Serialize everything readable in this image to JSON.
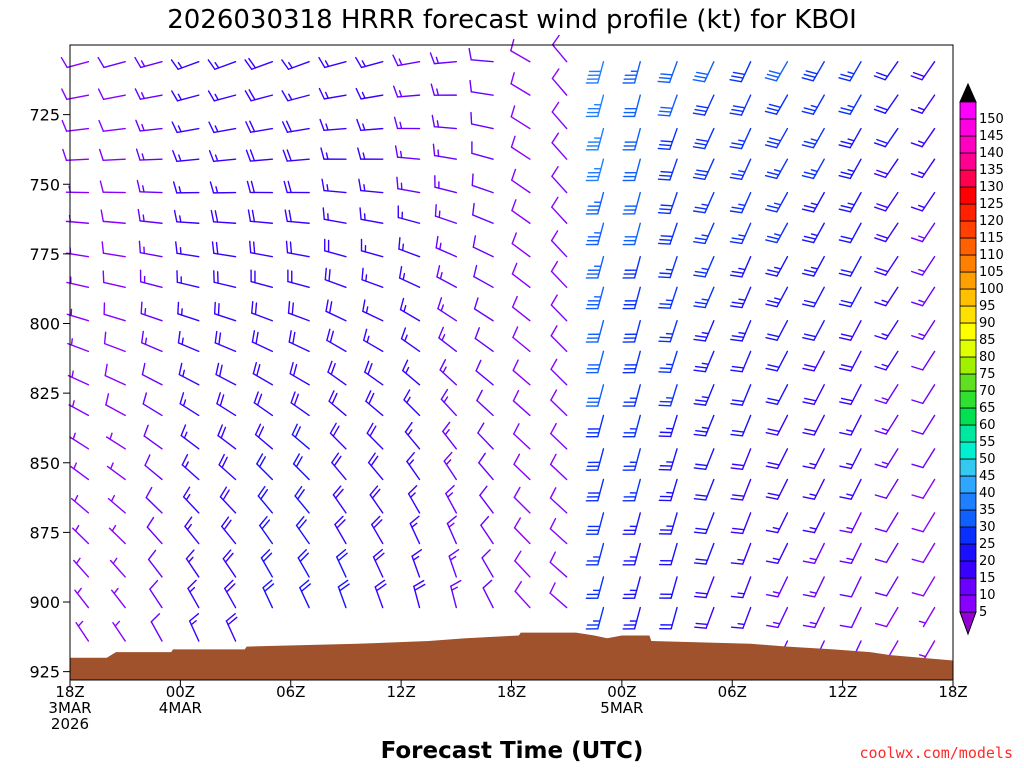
{
  "chart_data": {
    "type": "wind-barb-time-height",
    "title": "2026030318 HRRR forecast wind profile (kt) for KBOI",
    "xlabel": "Forecast Time (UTC)",
    "ylabel": "",
    "credit": "coolwx.com/models",
    "y_axis": {
      "units": "hPa",
      "ylim": [
        700,
        928
      ],
      "inverted": true,
      "ticks": [
        725,
        750,
        775,
        800,
        825,
        850,
        875,
        900,
        925
      ]
    },
    "x_axis": {
      "units": "forecast hours from 2026-03-03 18Z",
      "xlim": [
        0,
        48
      ],
      "ticks": [
        {
          "hour": 0,
          "lines": [
            "18Z",
            "3MAR",
            "2026"
          ]
        },
        {
          "hour": 6,
          "lines": [
            "00Z",
            "4MAR"
          ]
        },
        {
          "hour": 12,
          "lines": [
            "06Z"
          ]
        },
        {
          "hour": 18,
          "lines": [
            "12Z"
          ]
        },
        {
          "hour": 24,
          "lines": [
            "18Z"
          ]
        },
        {
          "hour": 30,
          "lines": [
            "00Z",
            "5MAR"
          ]
        },
        {
          "hour": 36,
          "lines": [
            "06Z"
          ]
        },
        {
          "hour": 42,
          "lines": [
            "12Z"
          ]
        },
        {
          "hour": 48,
          "lines": [
            "18Z"
          ]
        }
      ]
    },
    "pressure_levels": [
      706,
      718,
      730,
      741,
      753,
      764,
      776,
      787,
      799,
      810,
      822,
      833,
      845,
      856,
      868,
      879,
      891,
      902,
      914,
      925
    ],
    "forecast_hours": [
      1,
      3,
      5,
      7,
      9,
      11,
      13,
      15,
      17,
      19,
      21,
      23,
      25,
      27,
      29,
      31,
      33,
      35,
      37,
      39,
      41,
      43,
      45,
      47
    ],
    "wind_model": {
      "note": "Approximate wind direction (deg, from) and speed (kt) per forecast hour; speed decreases toward the surface.",
      "upper_direction_deg": [
        255,
        255,
        255,
        250,
        250,
        250,
        250,
        255,
        255,
        260,
        265,
        275,
        300,
        320,
        195,
        195,
        200,
        205,
        205,
        210,
        210,
        210,
        215,
        215
      ],
      "lower_direction_deg": [
        330,
        330,
        335,
        340,
        340,
        345,
        345,
        350,
        350,
        355,
        355,
        340,
        320,
        310,
        195,
        195,
        195,
        200,
        200,
        205,
        205,
        205,
        210,
        210
      ],
      "upper_speed_kt": [
        8,
        10,
        13,
        16,
        17,
        18,
        17,
        16,
        15,
        14,
        13,
        11,
        8,
        9,
        38,
        33,
        31,
        30,
        29,
        30,
        28,
        26,
        22,
        18
      ],
      "lower_speed_kt": [
        5,
        6,
        12,
        16,
        19,
        21,
        22,
        21,
        20,
        18,
        15,
        12,
        8,
        8,
        24,
        22,
        20,
        18,
        14,
        12,
        11,
        10,
        8,
        6
      ]
    },
    "terrain_surface_pressure_hPa": [
      {
        "hour": 0,
        "p": 920
      },
      {
        "hour": 2,
        "p": 920
      },
      {
        "hour": 2.5,
        "p": 918
      },
      {
        "hour": 5.5,
        "p": 918
      },
      {
        "hour": 5.6,
        "p": 917
      },
      {
        "hour": 9.5,
        "p": 917
      },
      {
        "hour": 9.6,
        "p": 916
      },
      {
        "hour": 15.6,
        "p": 915
      },
      {
        "hour": 19.5,
        "p": 914
      },
      {
        "hour": 21.5,
        "p": 913
      },
      {
        "hour": 24.4,
        "p": 912
      },
      {
        "hour": 24.5,
        "p": 911
      },
      {
        "hour": 27.5,
        "p": 911
      },
      {
        "hour": 28.5,
        "p": 912
      },
      {
        "hour": 29.2,
        "p": 913
      },
      {
        "hour": 30,
        "p": 912
      },
      {
        "hour": 31.5,
        "p": 912
      },
      {
        "hour": 31.6,
        "p": 914
      },
      {
        "hour": 37,
        "p": 915
      },
      {
        "hour": 39,
        "p": 916
      },
      {
        "hour": 41.5,
        "p": 917
      },
      {
        "hour": 43.5,
        "p": 918
      },
      {
        "hour": 44.5,
        "p": 919
      },
      {
        "hour": 48,
        "p": 921
      }
    ],
    "colorbar": {
      "units": "kt",
      "labels": [
        "5",
        "10",
        "15",
        "20",
        "25",
        "30",
        "35",
        "40",
        "45",
        "50",
        "55",
        "60",
        "65",
        "70",
        "75",
        "80",
        "85",
        "90",
        "95",
        "100",
        "105",
        "110",
        "115",
        "120",
        "125",
        "130",
        "135",
        "140",
        "145",
        "150"
      ],
      "colors": [
        "#8a00ff",
        "#6a00ff",
        "#3a00ff",
        "#1a10ff",
        "#0a30ff",
        "#1060ff",
        "#1f7fff",
        "#2fa6ff",
        "#35c8f0",
        "#00f0d0",
        "#00e8a0",
        "#00e050",
        "#30e030",
        "#60e020",
        "#a0f000",
        "#e0ff00",
        "#ffff00",
        "#ffe000",
        "#ffc000",
        "#ffa000",
        "#ff8000",
        "#ff6000",
        "#ff4000",
        "#ff2000",
        "#ff0000",
        "#ff0050",
        "#ff0090",
        "#ff00c0",
        "#ff00e0",
        "#ff00ff"
      ],
      "under_color": "#9400d3",
      "over_color": "#000000"
    },
    "terrain_color": "#a0522d"
  }
}
